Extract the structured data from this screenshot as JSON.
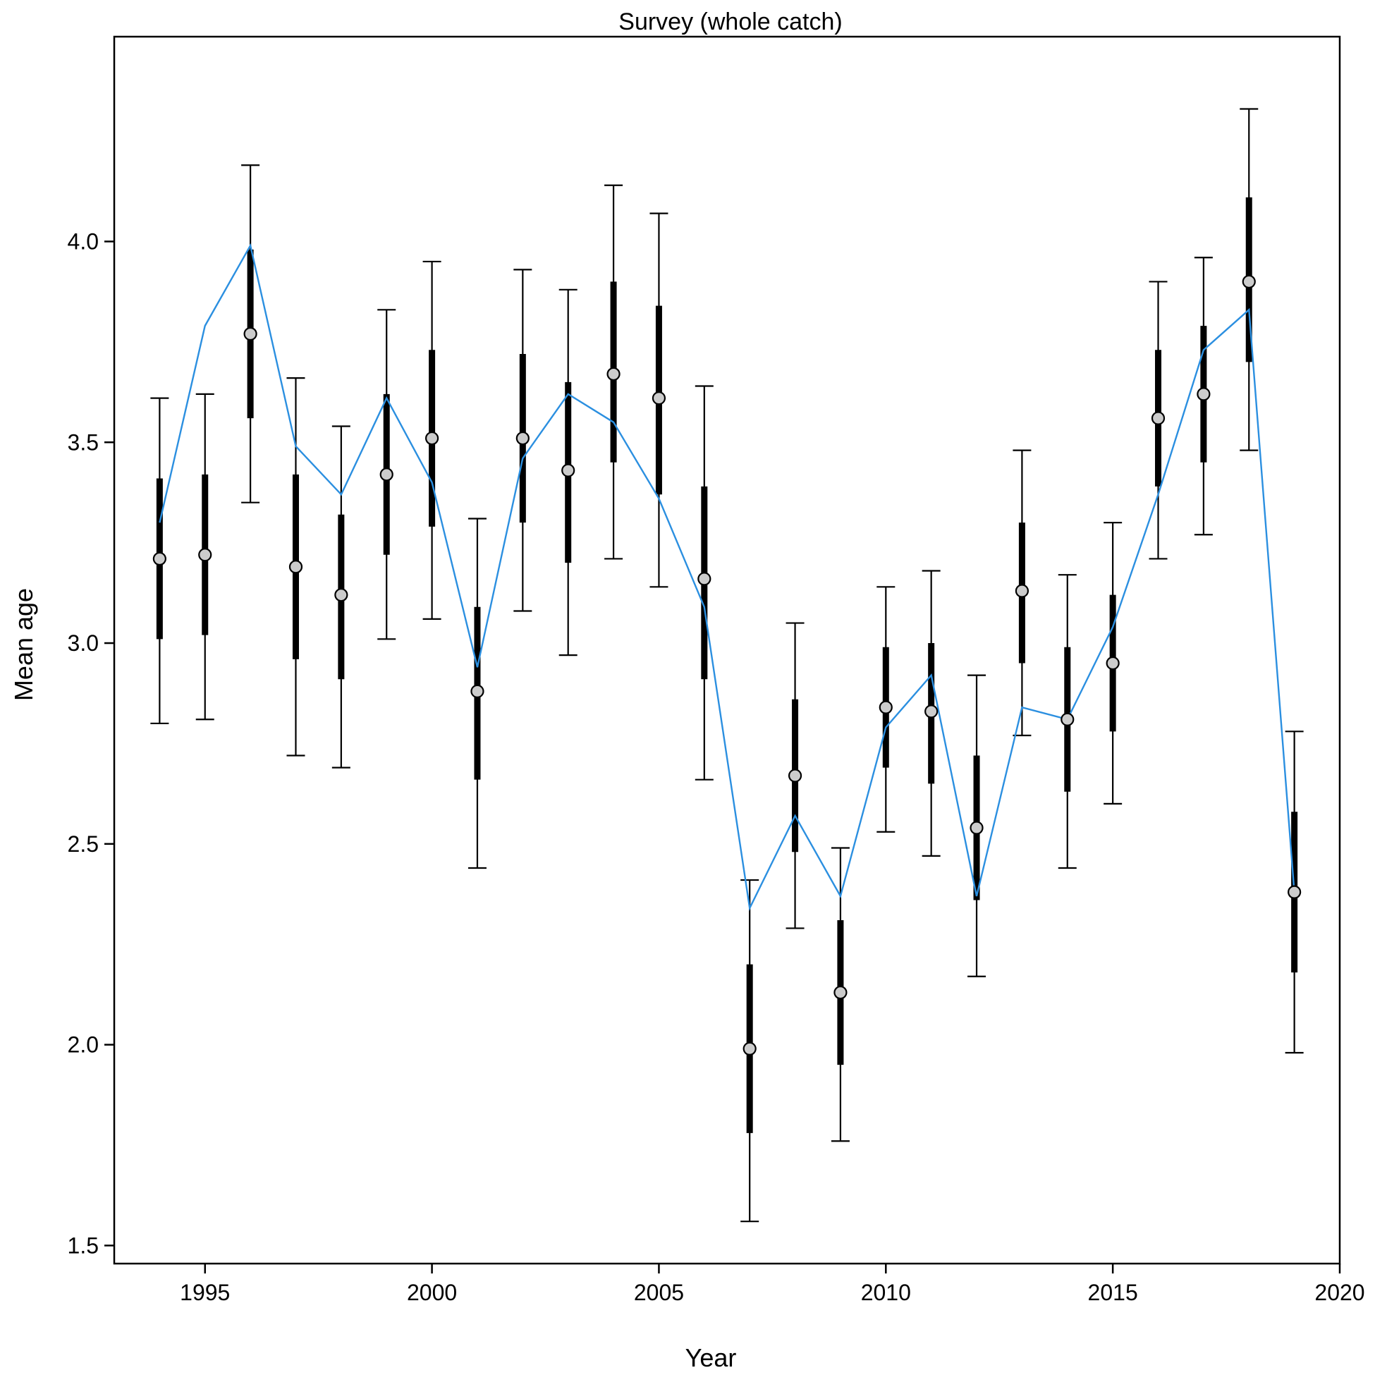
{
  "chart_data": {
    "type": "line",
    "title": "Survey (whole catch)",
    "xlabel": "Year",
    "ylabel": "Mean age",
    "xlim": [
      1993.0,
      2020.0
    ],
    "ylim": [
      1.455,
      4.51
    ],
    "x_ticks": [
      "1995",
      "2000",
      "2005",
      "2010",
      "2015",
      "2020"
    ],
    "y_ticks": [
      "1.5",
      "2.0",
      "2.5",
      "3.0",
      "3.5",
      "4.0"
    ],
    "grid": false,
    "colors": {
      "expected_line": "#2b8fe0",
      "observed_point": "#cccccc",
      "interval": "#000000"
    },
    "series": [
      {
        "type": "interval-points",
        "x": [
          1994,
          1995,
          1996,
          1997,
          1998,
          1999,
          2000,
          2001,
          2002,
          2003,
          2004,
          2005,
          2006,
          2007,
          2008,
          2009,
          2010,
          2011,
          2012,
          2013,
          2014,
          2015,
          2016,
          2017,
          2018,
          2019
        ],
        "y": [
          3.21,
          3.22,
          3.77,
          3.19,
          3.12,
          3.42,
          3.51,
          2.88,
          3.51,
          3.43,
          3.67,
          3.61,
          3.16,
          1.99,
          2.67,
          2.13,
          2.84,
          2.83,
          2.54,
          3.13,
          2.81,
          2.95,
          3.56,
          3.62,
          3.9,
          2.38
        ],
        "inner_low": [
          3.01,
          3.02,
          3.56,
          2.96,
          2.91,
          3.22,
          3.29,
          2.66,
          3.3,
          3.2,
          3.45,
          3.37,
          2.91,
          1.78,
          2.48,
          1.95,
          2.69,
          2.65,
          2.36,
          2.95,
          2.63,
          2.78,
          3.39,
          3.45,
          3.7,
          2.18
        ],
        "inner_high": [
          3.41,
          3.42,
          3.98,
          3.42,
          3.32,
          3.62,
          3.73,
          3.09,
          3.72,
          3.65,
          3.9,
          3.84,
          3.39,
          2.2,
          2.86,
          2.31,
          2.99,
          3.0,
          2.72,
          3.3,
          2.99,
          3.12,
          3.73,
          3.79,
          4.11,
          2.58
        ],
        "outer_low": [
          2.8,
          2.81,
          3.35,
          2.72,
          2.69,
          3.01,
          3.06,
          2.44,
          3.08,
          2.97,
          3.21,
          3.14,
          2.66,
          1.56,
          2.29,
          1.76,
          2.53,
          2.47,
          2.17,
          2.77,
          2.44,
          2.6,
          3.21,
          3.27,
          3.48,
          1.98
        ],
        "outer_high": [
          3.61,
          3.62,
          4.19,
          3.66,
          3.54,
          3.83,
          3.95,
          3.31,
          3.93,
          3.88,
          4.14,
          4.07,
          3.64,
          2.41,
          3.05,
          2.49,
          3.14,
          3.18,
          2.92,
          3.48,
          3.17,
          3.3,
          3.9,
          3.96,
          4.33,
          2.78
        ]
      },
      {
        "type": "line",
        "x": [
          1994,
          1995,
          1996,
          1997,
          1998,
          1999,
          2000,
          2001,
          2002,
          2003,
          2004,
          2005,
          2006,
          2007,
          2008,
          2009,
          2010,
          2011,
          2012,
          2013,
          2014,
          2015,
          2016,
          2017,
          2018,
          2019
        ],
        "y": [
          3.3,
          3.79,
          3.99,
          3.49,
          3.37,
          3.61,
          3.4,
          2.94,
          3.46,
          3.62,
          3.55,
          3.36,
          3.09,
          2.34,
          2.57,
          2.37,
          2.79,
          2.92,
          2.37,
          2.84,
          2.81,
          3.04,
          3.37,
          3.73,
          3.83,
          2.38
        ]
      }
    ]
  }
}
